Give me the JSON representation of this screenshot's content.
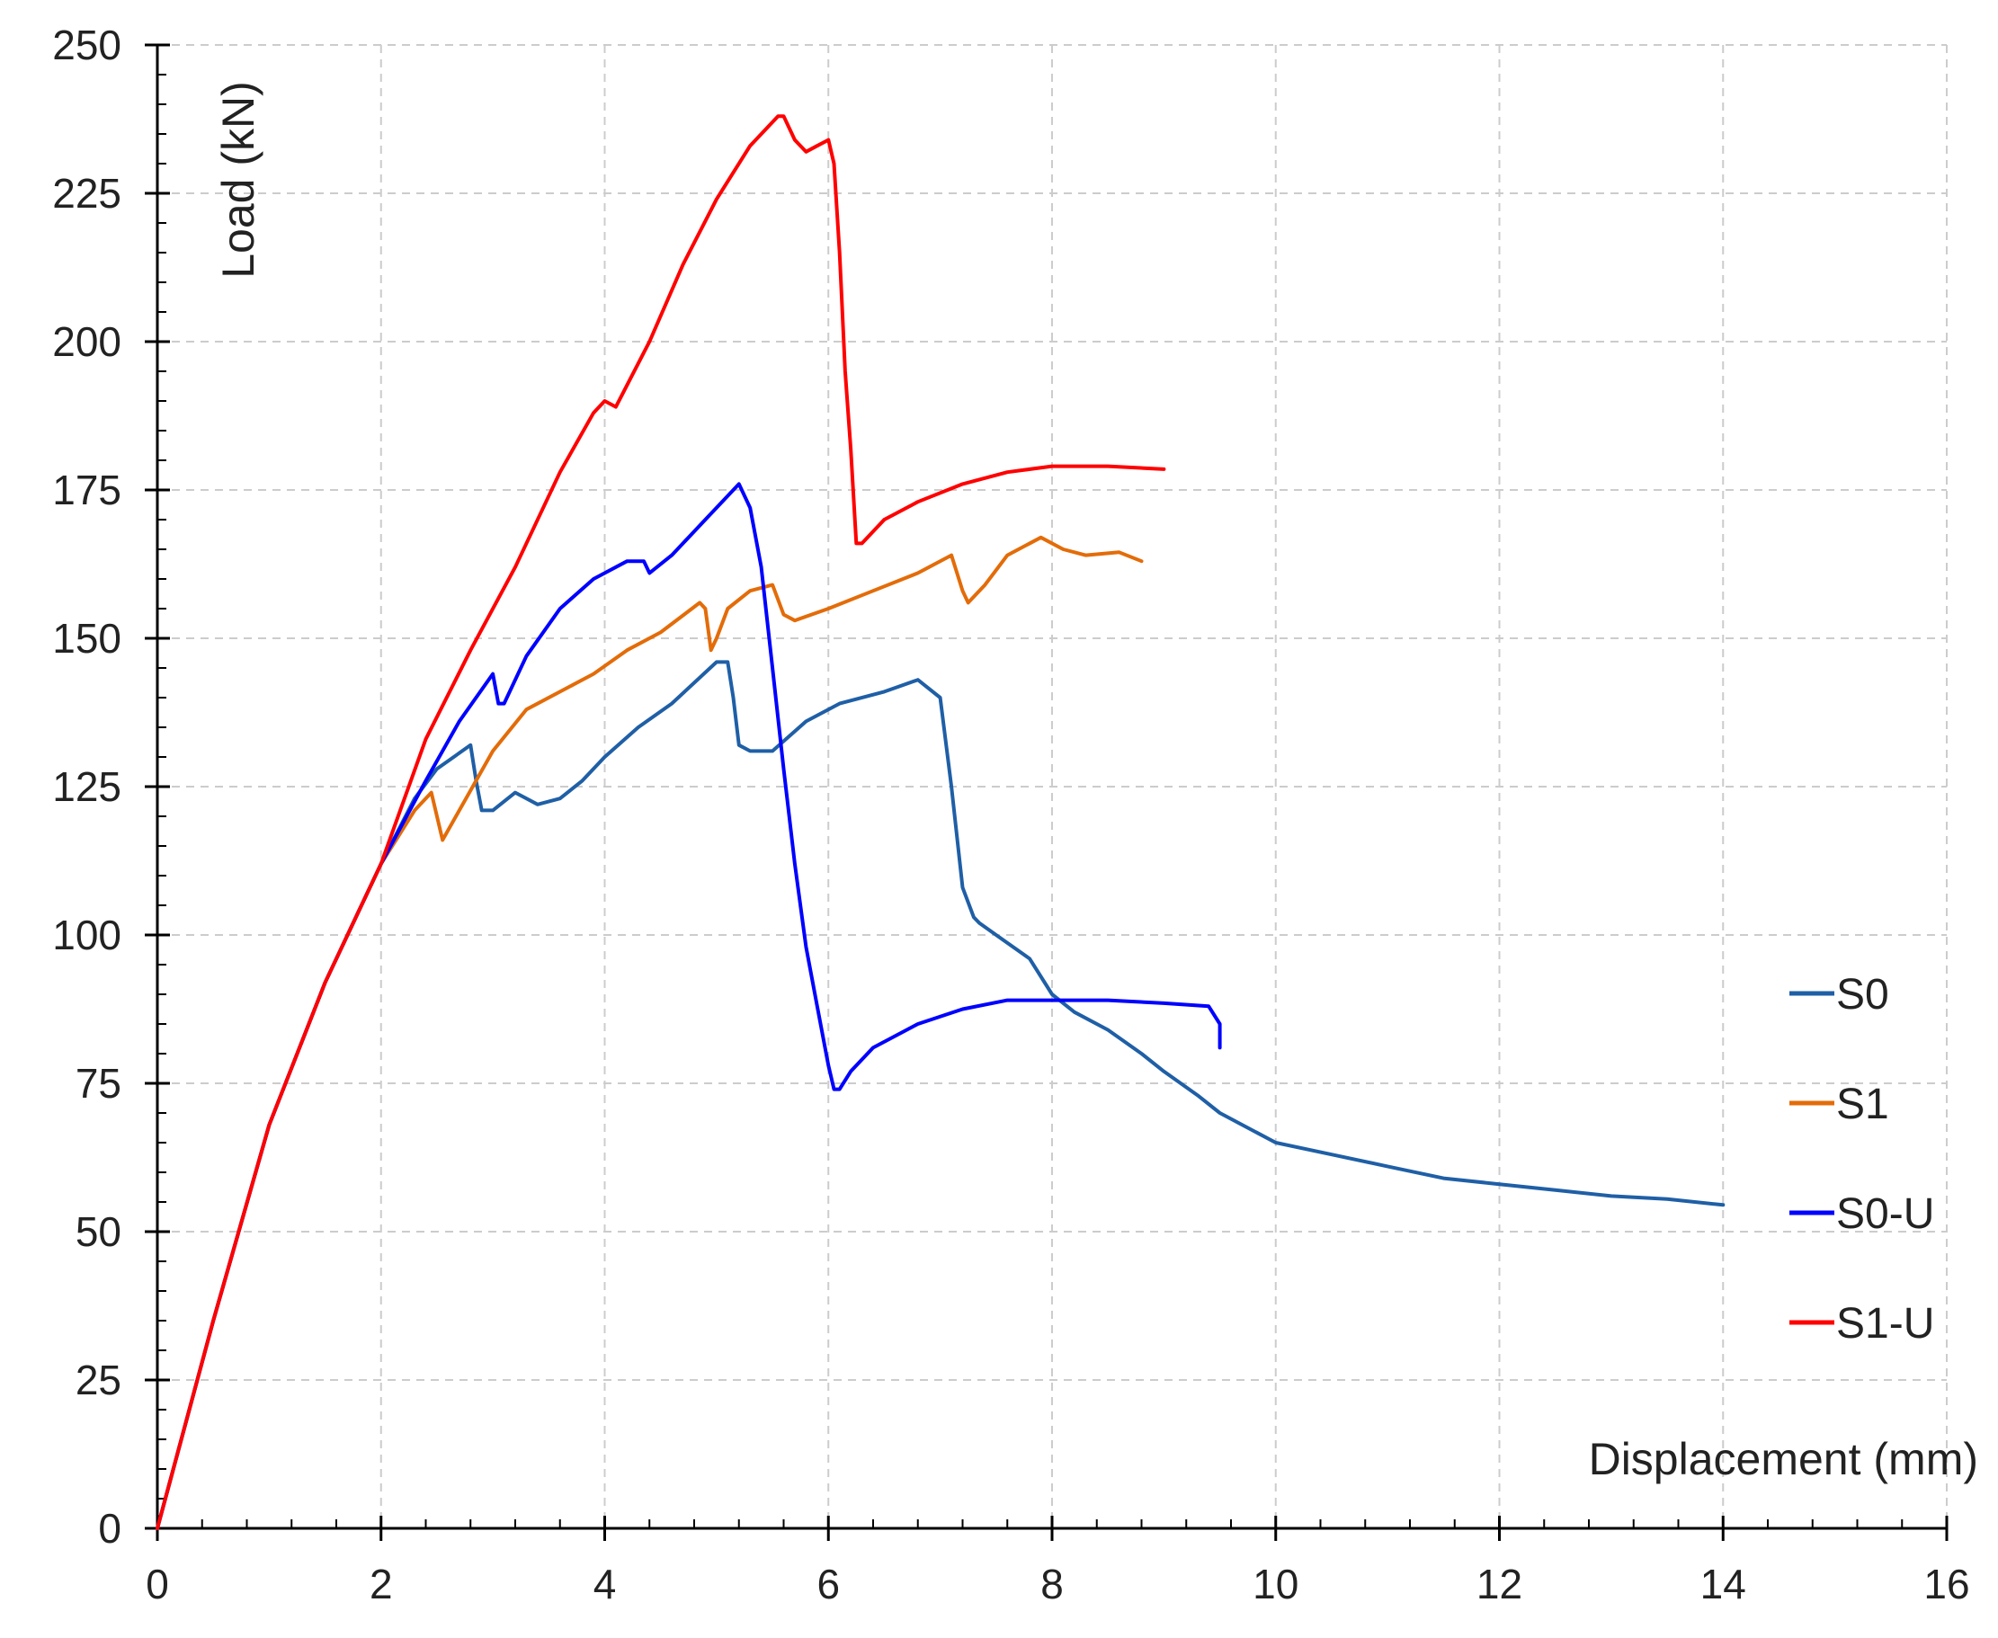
{
  "chart_data": {
    "type": "line",
    "xlabel": "Displacement (mm)",
    "ylabel": "Load (kN)",
    "xlim": [
      0,
      16
    ],
    "ylim": [
      0,
      250
    ],
    "xticks": [
      0,
      2,
      4,
      6,
      8,
      10,
      12,
      14,
      16
    ],
    "yticks": [
      0,
      25,
      50,
      75,
      100,
      125,
      150,
      175,
      200,
      225,
      250
    ],
    "grid": true,
    "legend_position": "right",
    "series": [
      {
        "name": "S0",
        "color": "#1f5fa6",
        "x": [
          0,
          0.5,
          1.0,
          1.5,
          2.0,
          2.3,
          2.5,
          2.8,
          2.85,
          2.9,
          3.0,
          3.2,
          3.4,
          3.6,
          3.8,
          4.0,
          4.3,
          4.6,
          5.0,
          5.1,
          5.15,
          5.2,
          5.3,
          5.5,
          5.8,
          6.1,
          6.5,
          6.8,
          7.0,
          7.1,
          7.2,
          7.3,
          7.35,
          7.5,
          7.8,
          8.0,
          8.2,
          8.5,
          8.8,
          9.0,
          9.3,
          9.5,
          10.0,
          10.5,
          11.0,
          11.5,
          12.0,
          12.5,
          13.0,
          13.5,
          14.0
        ],
        "y": [
          0,
          35,
          68,
          92,
          112,
          123,
          128,
          132,
          126,
          121,
          121,
          124,
          122,
          123,
          126,
          130,
          135,
          139,
          146,
          146,
          140,
          132,
          131,
          131,
          136,
          139,
          141,
          143,
          140,
          125,
          108,
          103,
          102,
          100,
          96,
          90,
          87,
          84,
          80,
          77,
          73,
          70,
          65,
          63,
          61,
          59,
          58,
          57,
          56,
          55.5,
          54.5
        ]
      },
      {
        "name": "S1",
        "color": "#e36c09",
        "x": [
          0,
          0.5,
          1.0,
          1.5,
          2.0,
          2.3,
          2.45,
          2.55,
          2.7,
          3.0,
          3.3,
          3.6,
          3.9,
          4.2,
          4.5,
          4.85,
          4.9,
          4.95,
          5.0,
          5.1,
          5.3,
          5.5,
          5.6,
          5.7,
          6.0,
          6.4,
          6.8,
          7.1,
          7.2,
          7.25,
          7.4,
          7.6,
          7.9,
          8.1,
          8.3,
          8.6,
          8.8
        ],
        "y": [
          0,
          35,
          68,
          92,
          112,
          121,
          124,
          116,
          121,
          131,
          138,
          141,
          144,
          148,
          151,
          156,
          155,
          148,
          150,
          155,
          158,
          159,
          154,
          153,
          155,
          158,
          161,
          164,
          158,
          156,
          159,
          164,
          167,
          165,
          164,
          164.5,
          163
        ]
      },
      {
        "name": "S0-U",
        "color": "#0000ff",
        "x": [
          0,
          0.5,
          1.0,
          1.5,
          2.0,
          2.4,
          2.7,
          3.0,
          3.05,
          3.1,
          3.3,
          3.6,
          3.9,
          4.2,
          4.35,
          4.4,
          4.6,
          4.9,
          5.2,
          5.3,
          5.4,
          5.5,
          5.6,
          5.7,
          5.8,
          5.9,
          6.0,
          6.05,
          6.1,
          6.2,
          6.4,
          6.8,
          7.2,
          7.6,
          8.0,
          8.5,
          9.0,
          9.4,
          9.5,
          9.5
        ],
        "y": [
          0,
          35,
          68,
          92,
          112,
          126,
          136,
          144,
          139,
          139,
          147,
          155,
          160,
          163,
          163,
          161,
          164,
          170,
          176,
          172,
          162,
          145,
          128,
          112,
          98,
          88,
          78,
          74,
          74,
          77,
          81,
          85,
          87.5,
          89,
          89,
          89,
          88.5,
          88,
          85,
          81
        ]
      },
      {
        "name": "S1-U",
        "color": "#ff0000",
        "x": [
          0,
          0.5,
          1.0,
          1.5,
          2.0,
          2.4,
          2.8,
          3.2,
          3.6,
          3.9,
          4.0,
          4.1,
          4.4,
          4.7,
          5.0,
          5.3,
          5.55,
          5.6,
          5.7,
          5.8,
          5.9,
          6.0,
          6.05,
          6.1,
          6.15,
          6.2,
          6.25,
          6.3,
          6.5,
          6.8,
          7.2,
          7.6,
          8.0,
          8.5,
          9.0
        ],
        "y": [
          0,
          35,
          68,
          92,
          112,
          133,
          148,
          162,
          178,
          188,
          190,
          189,
          200,
          213,
          224,
          233,
          238,
          238,
          234,
          232,
          233,
          234,
          230,
          215,
          195,
          182,
          166,
          166,
          170,
          173,
          176,
          178,
          179,
          179,
          178.5
        ]
      }
    ]
  }
}
